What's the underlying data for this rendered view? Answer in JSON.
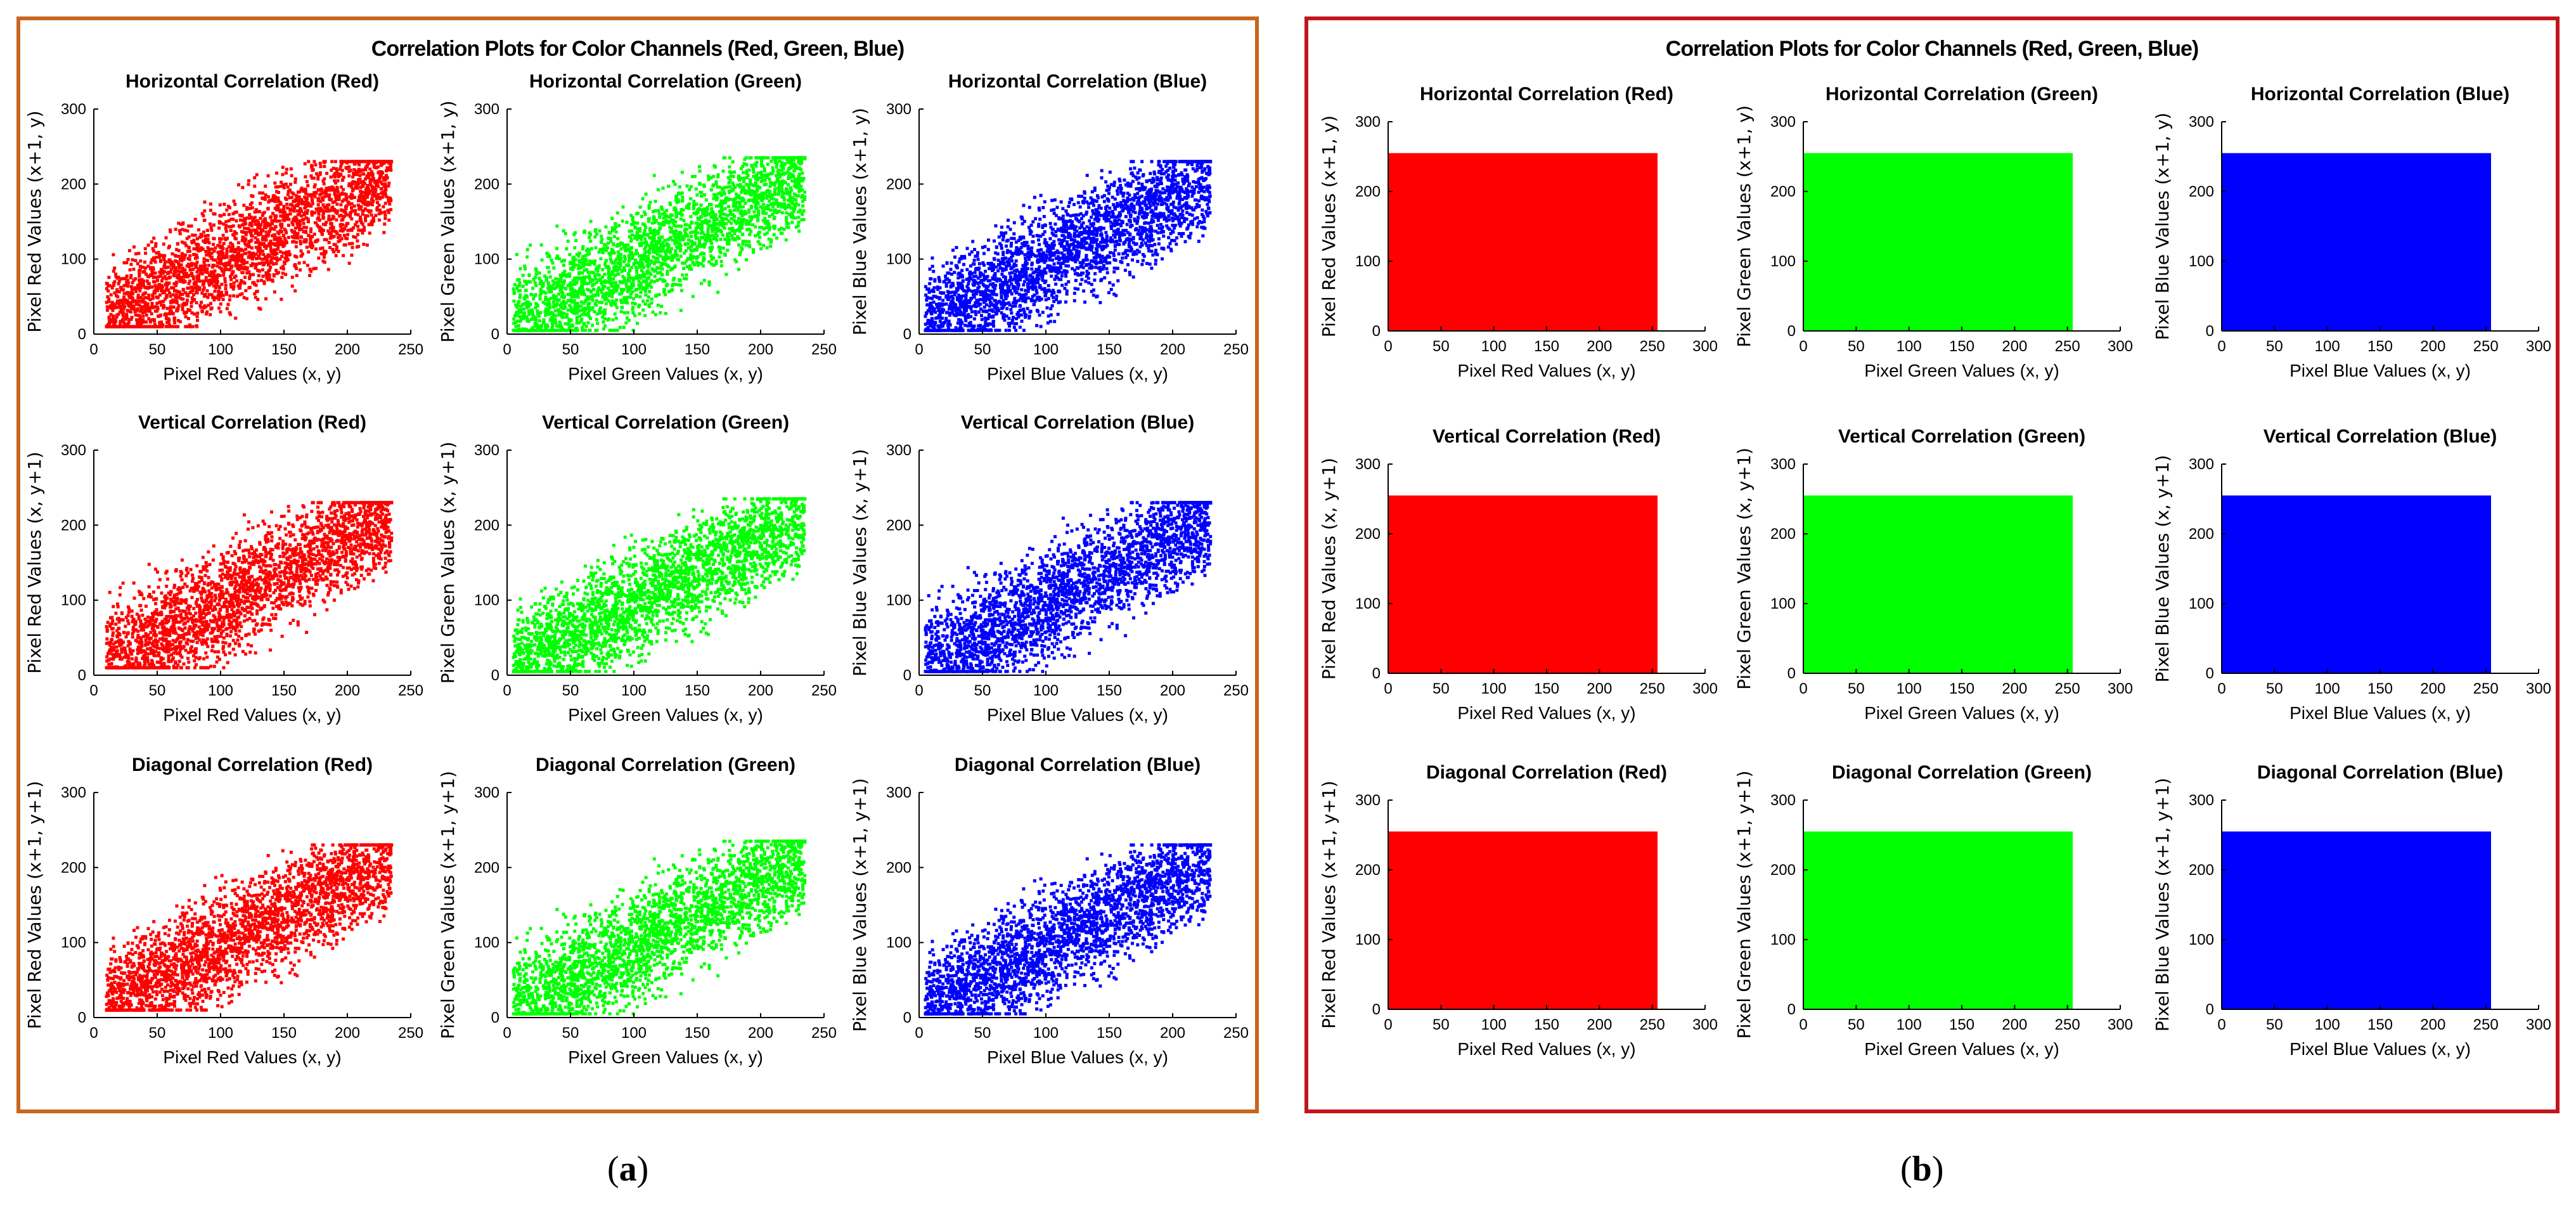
{
  "figure": {
    "panel_a": {
      "title": "Correlation Plots for Color Channels (Red, Green, Blue)",
      "label": "a"
    },
    "panel_b": {
      "title": "Correlation Plots for Color Channels (Red, Green, Blue)",
      "label": "b"
    }
  },
  "colors": {
    "red": "#ff0000",
    "green": "#00ff00",
    "blue": "#0000ff",
    "panel_a_border": "#c8661e",
    "panel_b_border": "#c0161c"
  },
  "chart_data": [
    {
      "panel": "a",
      "type": "scatter",
      "title": "Correlation Plots for Color Channels (Red, Green, Blue)",
      "xlim": [
        0,
        250
      ],
      "ylim": [
        0,
        300
      ],
      "xticks": [
        0,
        50,
        100,
        150,
        200,
        250
      ],
      "yticks": [
        0,
        100,
        200,
        300
      ],
      "description_trend": "points spread around y = x between about 10 and 235, band width ~±70",
      "subplots": [
        {
          "title": "Horizontal Correlation (Red)",
          "xlabel": "Pixel Red Values (x, y)",
          "ylabel": "Pixel Red Values (x+1, y)",
          "color": "#ff0000",
          "x_range": [
            10,
            235
          ],
          "y_range": [
            10,
            230
          ]
        },
        {
          "title": "Horizontal Correlation (Green)",
          "xlabel": "Pixel Green Values (x, y)",
          "ylabel": "Pixel Green Values (x+1, y)",
          "color": "#00ff00",
          "x_range": [
            5,
            235
          ],
          "y_range": [
            5,
            235
          ]
        },
        {
          "title": "Horizontal Correlation (Blue)",
          "xlabel": "Pixel Blue Values (x, y)",
          "ylabel": "Pixel Blue Values (x+1, y)",
          "color": "#0000ff",
          "x_range": [
            5,
            230
          ],
          "y_range": [
            5,
            230
          ]
        },
        {
          "title": "Vertical Correlation (Red)",
          "xlabel": "Pixel Red Values (x, y)",
          "ylabel": "Pixel Red Values (x, y+1)",
          "color": "#ff0000",
          "x_range": [
            10,
            235
          ],
          "y_range": [
            10,
            230
          ]
        },
        {
          "title": "Vertical Correlation (Green)",
          "xlabel": "Pixel Green Values (x, y)",
          "ylabel": "Pixel Green Values (x, y+1)",
          "color": "#00ff00",
          "x_range": [
            5,
            235
          ],
          "y_range": [
            5,
            235
          ]
        },
        {
          "title": "Vertical Correlation (Blue)",
          "xlabel": "Pixel Blue Values (x, y)",
          "ylabel": "Pixel Blue Values (x, y+1)",
          "color": "#0000ff",
          "x_range": [
            5,
            230
          ],
          "y_range": [
            5,
            230
          ]
        },
        {
          "title": "Diagonal Correlation (Red)",
          "xlabel": "Pixel Red Values (x, y)",
          "ylabel": "Pixel Red Values (x+1, y+1)",
          "color": "#ff0000",
          "x_range": [
            10,
            235
          ],
          "y_range": [
            10,
            230
          ]
        },
        {
          "title": "Diagonal Correlation (Green)",
          "xlabel": "Pixel Green Values (x, y)",
          "ylabel": "Pixel Green Values (x+1, y+1)",
          "color": "#00ff00",
          "x_range": [
            5,
            235
          ],
          "y_range": [
            5,
            235
          ]
        },
        {
          "title": "Diagonal Correlation (Blue)",
          "xlabel": "Pixel Blue Values (x, y)",
          "ylabel": "Pixel Blue Values (x+1, y+1)",
          "color": "#0000ff",
          "x_range": [
            5,
            230
          ],
          "y_range": [
            5,
            230
          ]
        }
      ]
    },
    {
      "panel": "b",
      "type": "scatter",
      "title": "Correlation Plots for Color Channels (Red, Green, Blue)",
      "xlim": [
        0,
        300
      ],
      "ylim": [
        0,
        300
      ],
      "xticks": [
        0,
        50,
        100,
        150,
        200,
        250,
        300
      ],
      "yticks": [
        0,
        100,
        200,
        300
      ],
      "description_trend": "points uniformly fill the square 0–255 × 0–255",
      "fill_range": [
        0,
        255
      ],
      "subplots": [
        {
          "title": "Horizontal Correlation (Red)",
          "xlabel": "Pixel Red Values (x, y)",
          "ylabel": "Pixel Red Values (x+1, y)",
          "color": "#ff0000"
        },
        {
          "title": "Horizontal Correlation (Green)",
          "xlabel": "Pixel Green Values (x, y)",
          "ylabel": "Pixel Green Values (x+1, y)",
          "color": "#00ff00"
        },
        {
          "title": "Horizontal Correlation (Blue)",
          "xlabel": "Pixel Blue Values (x, y)",
          "ylabel": "Pixel Blue Values (x+1, y)",
          "color": "#0000ff"
        },
        {
          "title": "Vertical Correlation (Red)",
          "xlabel": "Pixel Red Values (x, y)",
          "ylabel": "Pixel Red Values (x, y+1)",
          "color": "#ff0000"
        },
        {
          "title": "Vertical Correlation (Green)",
          "xlabel": "Pixel Green Values (x, y)",
          "ylabel": "Pixel Green Values (x, y+1)",
          "color": "#00ff00"
        },
        {
          "title": "Vertical Correlation (Blue)",
          "xlabel": "Pixel Blue Values (x, y)",
          "ylabel": "Pixel Blue Values (x, y+1)",
          "color": "#0000ff"
        },
        {
          "title": "Diagonal Correlation (Red)",
          "xlabel": "Pixel Red Values (x, y)",
          "ylabel": "Pixel Red Values (x+1, y+1)",
          "color": "#ff0000"
        },
        {
          "title": "Diagonal Correlation (Green)",
          "xlabel": "Pixel Green Values (x, y)",
          "ylabel": "Pixel Green Values (x+1, y+1)",
          "color": "#00ff00"
        },
        {
          "title": "Diagonal Correlation (Blue)",
          "xlabel": "Pixel Blue Values (x, y)",
          "ylabel": "Pixel Blue Values (x+1, y+1)",
          "color": "#0000ff"
        }
      ]
    }
  ]
}
